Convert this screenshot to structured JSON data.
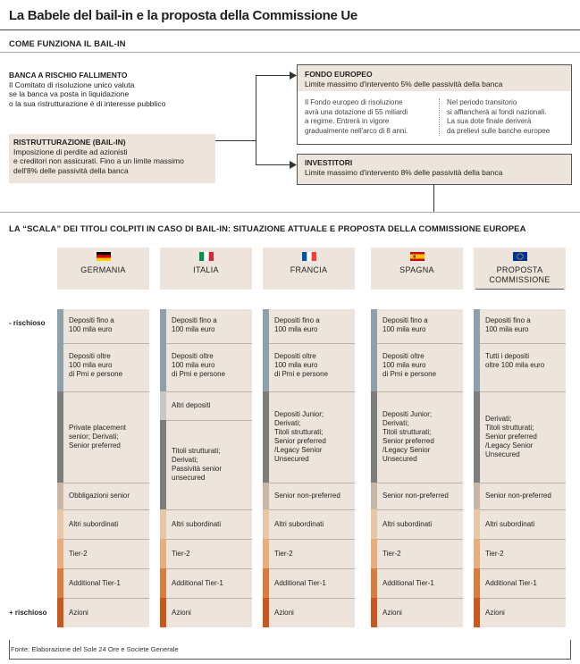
{
  "title": "La Babele del bail-in e la proposta della Commissione Ue",
  "section1_title": "COME FUNZIONA IL BAIL-IN",
  "banca": {
    "heading": "BANCA A RISCHIO FALLIMENTO",
    "lines": [
      "Il Comitato di risoluzione unico valuta",
      "se la banca va posta in liquidazione",
      "o la sua ristrutturazione è di interesse pubblico"
    ]
  },
  "ristrutturazione": {
    "heading": "RISTRUTTURAZIONE (BAIL-IN)",
    "lines": [
      "Imposizione di perdite ad azionisti",
      "e creditori non assicurati. Fino a un limite massimo",
      "dell'8% delle passività della banca"
    ]
  },
  "fondo": {
    "heading": "FONDO EUROPEO",
    "sub": "Limite massimo d'intervento 5% delle passività della banca",
    "left_lines": [
      "Il Fondo europeo di risoluzione",
      "avrà una dotazione di 55 miliardi",
      "a regime. Entrerà in vigore",
      "gradualmente nell'arco di 8 anni."
    ],
    "right_lines": [
      "Nel periodo transitorio",
      "si affiancherà ai fondi nazionali.",
      "La sua dote finale deriverà",
      "da prelievi sulle banche europee"
    ]
  },
  "investitori": {
    "heading": "INVESTITORI",
    "sub": "Limite massimo d'intervento 8% delle passività della banca"
  },
  "section2_title": "LA “SCALA” DEI TITOLI COLPITI IN CASO DI BAIL-IN: SITUAZIONE ATTUALE E PROPOSTA DELLA COMMISSIONE EUROPEA",
  "side_labels": {
    "minus": "- rischioso",
    "plus": "+ rischioso"
  },
  "columns": [
    {
      "name_lines": [
        "GERMANIA"
      ],
      "flag": "germany-flag",
      "cells": [
        {
          "lines": [
            "Depositi fino a",
            "100 mila euro"
          ],
          "color": "#8fa0ad"
        },
        {
          "lines": [
            "Depositi oltre",
            "100 mila euro",
            "di Pmi e persone"
          ],
          "color": "#8fa0ad"
        },
        {
          "lines": [
            "Private placement",
            "senior; Derivati;",
            "Senior preferred"
          ],
          "color": "#7d7d7d"
        },
        {
          "lines": [
            "Obbligazioni senior"
          ],
          "color": "#c8b7a2"
        },
        {
          "lines": [
            "Altri subordinati"
          ],
          "color": "#e8c7a6"
        },
        {
          "lines": [
            "Tier-2"
          ],
          "color": "#e9ad7c"
        },
        {
          "lines": [
            "Additional Tier-1"
          ],
          "color": "#d97c3e"
        },
        {
          "lines": [
            "Azioni"
          ],
          "color": "#c9581f"
        }
      ]
    },
    {
      "name_lines": [
        "ITALIA"
      ],
      "flag": "italy-flag",
      "cells": [
        {
          "lines": [
            "Depositi fino a",
            "100 mila euro"
          ],
          "color": "#8fa0ad"
        },
        {
          "lines": [
            "Depositi oltre",
            "100 mila euro",
            "di Pmi e persone"
          ],
          "color": "#8fa0ad"
        },
        {
          "lines": [
            "Altri depositi"
          ],
          "color": "#c8c8c8"
        },
        {
          "lines": [
            "Titoli strutturati;",
            "Derivati;",
            "Passività senior",
            "unsecured"
          ],
          "color": "#7d7d7d"
        },
        {
          "lines": [
            "Altri subordinati"
          ],
          "color": "#e8c7a6"
        },
        {
          "lines": [
            "Tier-2"
          ],
          "color": "#e9ad7c"
        },
        {
          "lines": [
            "Additional Tier-1"
          ],
          "color": "#d97c3e"
        },
        {
          "lines": [
            "Azioni"
          ],
          "color": "#c9581f"
        }
      ]
    },
    {
      "name_lines": [
        "FRANCIA"
      ],
      "flag": "france-flag",
      "cells": [
        {
          "lines": [
            "Depositi fino a",
            "100 mila euro"
          ],
          "color": "#8fa0ad"
        },
        {
          "lines": [
            "Depositi oltre",
            "100 mila euro",
            "di Pmi e persone"
          ],
          "color": "#8fa0ad"
        },
        {
          "lines": [
            "Depositi Junior;",
            "Derivati;",
            "Titoli strutturati;",
            "Senior preferred",
            "/Legacy Senior",
            "Unsecured"
          ],
          "color": "#7d7d7d"
        },
        {
          "lines": [
            "Senior non-preferred"
          ],
          "color": "#c8b7a2"
        },
        {
          "lines": [
            "Altri subordinati"
          ],
          "color": "#e8c7a6"
        },
        {
          "lines": [
            "Tier-2"
          ],
          "color": "#e9ad7c"
        },
        {
          "lines": [
            "Additional Tier-1"
          ],
          "color": "#d97c3e"
        },
        {
          "lines": [
            "Azioni"
          ],
          "color": "#c9581f"
        }
      ]
    },
    {
      "name_lines": [
        "SPAGNA"
      ],
      "flag": "spain-flag",
      "cells": [
        {
          "lines": [
            "Depositi fino a",
            "100 mila euro"
          ],
          "color": "#8fa0ad"
        },
        {
          "lines": [
            "Depositi oltre",
            "100 mila euro",
            "di Pmi e persone"
          ],
          "color": "#8fa0ad"
        },
        {
          "lines": [
            "Depositi Junior;",
            "Derivati;",
            "Titoli strutturati;",
            "Senior preferred",
            "/Legacy Senior",
            "Unsecured"
          ],
          "color": "#7d7d7d"
        },
        {
          "lines": [
            "Senior non-preferred"
          ],
          "color": "#c8b7a2"
        },
        {
          "lines": [
            "Altri subordinati"
          ],
          "color": "#e8c7a6"
        },
        {
          "lines": [
            "Tier-2"
          ],
          "color": "#e9ad7c"
        },
        {
          "lines": [
            "Additional Tier-1"
          ],
          "color": "#d97c3e"
        },
        {
          "lines": [
            "Azioni"
          ],
          "color": "#c9581f"
        }
      ]
    },
    {
      "name_lines": [
        "PROPOSTA",
        "COMMISSIONE"
      ],
      "flag": "eu-flag",
      "cells": [
        {
          "lines": [
            "Depositi fino a",
            "100 mila euro"
          ],
          "color": "#8fa0ad"
        },
        {
          "lines": [
            "Tutti i depositi",
            "oltre 100 mila euro"
          ],
          "color": "#8fa0ad"
        },
        {
          "lines": [
            "Derivati;",
            "Titoli strutturati;",
            "Senior preferred",
            "/Legacy Senior",
            "Unsecured"
          ],
          "color": "#7d7d7d"
        },
        {
          "lines": [
            "Senior non-preferred"
          ],
          "color": "#c8b7a2"
        },
        {
          "lines": [
            "Altri subordinati"
          ],
          "color": "#e8c7a6"
        },
        {
          "lines": [
            "Tier-2"
          ],
          "color": "#e9ad7c"
        },
        {
          "lines": [
            "Additional Tier-1"
          ],
          "color": "#d97c3e"
        },
        {
          "lines": [
            "Azioni"
          ],
          "color": "#c9581f"
        }
      ]
    }
  ],
  "footer": "Fonte: Elaborazione del Sole 24 Ore e Societe Generale"
}
